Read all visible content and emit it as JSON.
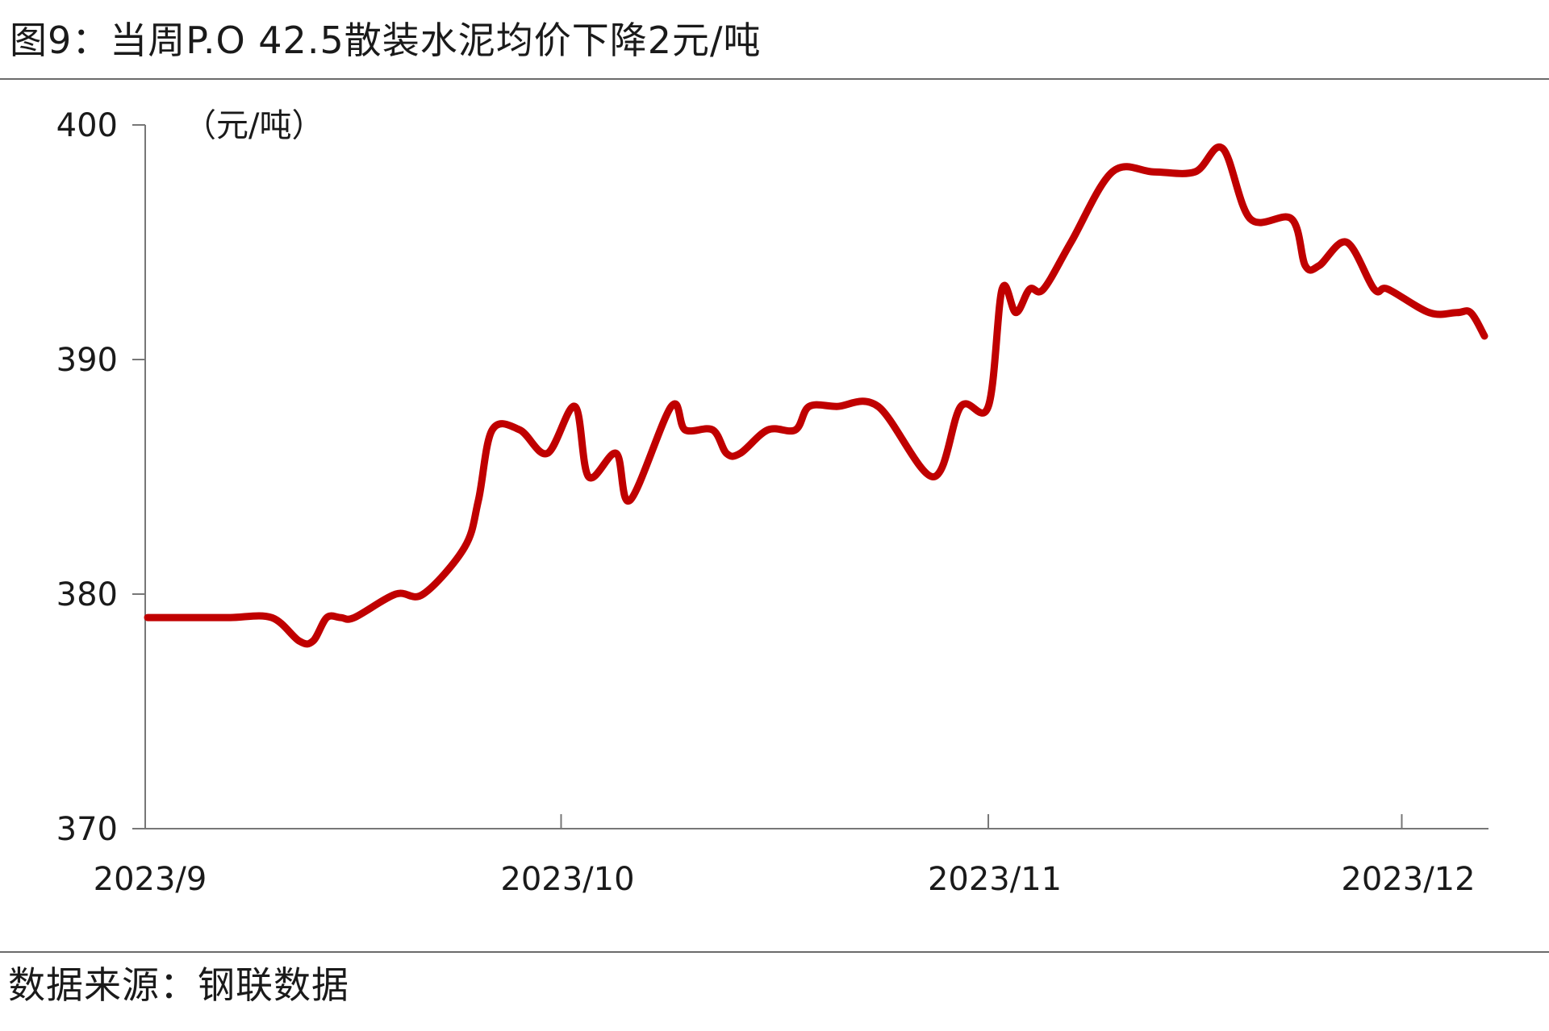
{
  "figure": {
    "title": "图9：当周P.O 42.5散装水泥均价下降2元/吨",
    "source": "数据来源：钢联数据"
  },
  "chart_data": {
    "type": "line",
    "unit_label": "（元/吨）",
    "ylim": [
      370,
      400
    ],
    "yticks": [
      "400",
      "390",
      "380",
      "370"
    ],
    "x_ticks": [
      "2023/9",
      "2023/10",
      "2023/11",
      "2023/12"
    ],
    "grid": false,
    "line_color": "#c00000",
    "series": [
      {
        "name": "",
        "x": [
          "2023-09-01",
          "2023-09-04",
          "2023-09-07",
          "2023-09-10",
          "2023-09-12",
          "2023-09-13",
          "2023-09-14",
          "2023-09-15",
          "2023-09-16",
          "2023-09-19",
          "2023-09-21",
          "2023-09-24",
          "2023-09-25",
          "2023-09-26",
          "2023-09-28",
          "2023-09-30",
          "2023-10-02",
          "2023-10-03",
          "2023-10-05",
          "2023-10-06",
          "2023-10-09",
          "2023-10-10",
          "2023-10-12",
          "2023-10-13",
          "2023-10-14",
          "2023-10-16",
          "2023-10-18",
          "2023-10-19",
          "2023-10-21",
          "2023-10-24",
          "2023-10-28",
          "2023-10-30",
          "2023-11-01",
          "2023-11-02",
          "2023-11-03",
          "2023-11-04",
          "2023-11-05",
          "2023-11-07",
          "2023-11-10",
          "2023-11-13",
          "2023-11-16",
          "2023-11-18",
          "2023-11-20",
          "2023-11-23",
          "2023-11-24",
          "2023-11-25",
          "2023-11-27",
          "2023-11-29",
          "2023-11-30",
          "2023-12-03",
          "2023-12-05",
          "2023-12-06",
          "2023-12-07"
        ],
        "values": [
          379,
          379,
          379,
          379,
          378,
          378,
          379,
          379,
          379,
          380,
          380,
          382,
          384,
          387,
          387,
          386,
          388,
          385,
          386,
          384,
          388,
          387,
          387,
          386,
          386,
          387,
          387,
          388,
          388,
          388,
          385,
          388,
          388,
          393,
          392,
          393,
          393,
          395,
          398,
          398,
          398,
          399,
          396,
          396,
          394,
          394,
          395,
          393,
          393,
          392,
          392,
          392,
          391
        ]
      }
    ]
  }
}
